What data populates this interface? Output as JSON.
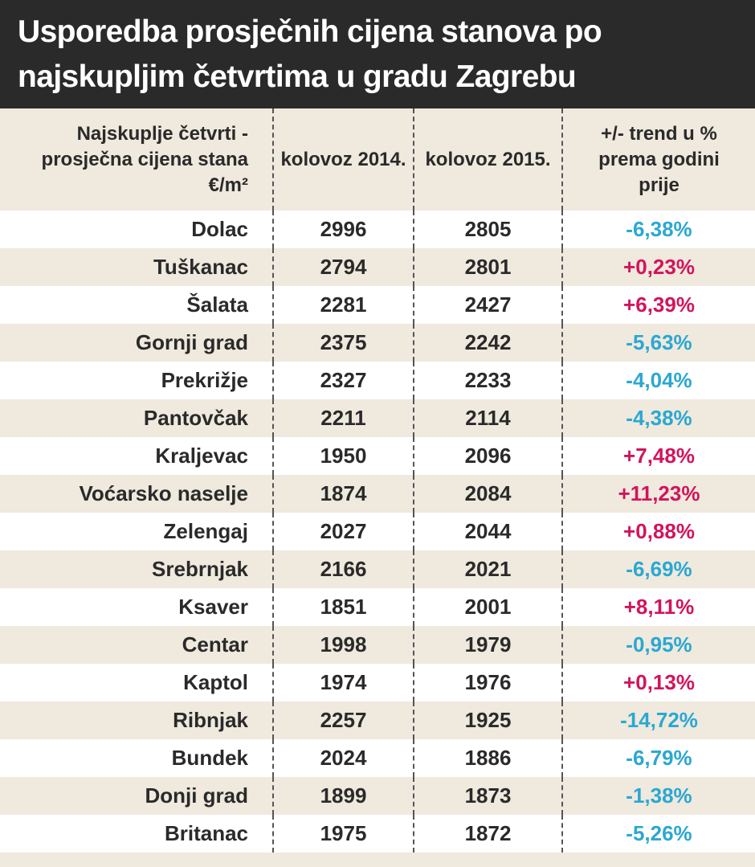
{
  "title": "Usporedba prosječnih cijena stanova po najskupljim četvrtima u gradu Zagrebu",
  "trend_colors": {
    "positive": "#d2145c",
    "negative": "#2aa8d2"
  },
  "table": {
    "header": [
      "Najskuplje četvrti - prosječna cijena stana €/m²",
      "kolovoz 2014.",
      "kolovoz 2015.",
      "+/- trend u % prema godini prije"
    ],
    "rows": [
      [
        "Dolac",
        2996,
        2805,
        "-6,38%"
      ],
      [
        "Tuškanac",
        2794,
        2801,
        "+0,23%"
      ],
      [
        "Šalata",
        2281,
        2427,
        "+6,39%"
      ],
      [
        "Gornji grad",
        2375,
        2242,
        "-5,63%"
      ],
      [
        "Prekrižje",
        2327,
        2233,
        "-4,04%"
      ],
      [
        "Pantovčak",
        2211,
        2114,
        "-4,38%"
      ],
      [
        "Kraljevac",
        1950,
        2096,
        "+7,48%"
      ],
      [
        "Voćarsko naselje",
        1874,
        2084,
        "+11,23%"
      ],
      [
        "Zelengaj",
        2027,
        2044,
        "+0,88%"
      ],
      [
        "Srebrnjak",
        2166,
        2021,
        "-6,69%"
      ],
      [
        "Ksaver",
        1851,
        2001,
        "+8,11%"
      ],
      [
        "Centar",
        1998,
        1979,
        "-0,95%"
      ],
      [
        "Kaptol",
        1974,
        1976,
        "+0,13%"
      ],
      [
        "Ribnjak",
        2257,
        1925,
        "-14,72%"
      ],
      [
        "Bundek",
        2024,
        1886,
        "-6,79%"
      ],
      [
        "Donji grad",
        1899,
        1873,
        "-1,38%"
      ],
      [
        "Britanac",
        1975,
        1872,
        "-5,26%"
      ]
    ]
  }
}
